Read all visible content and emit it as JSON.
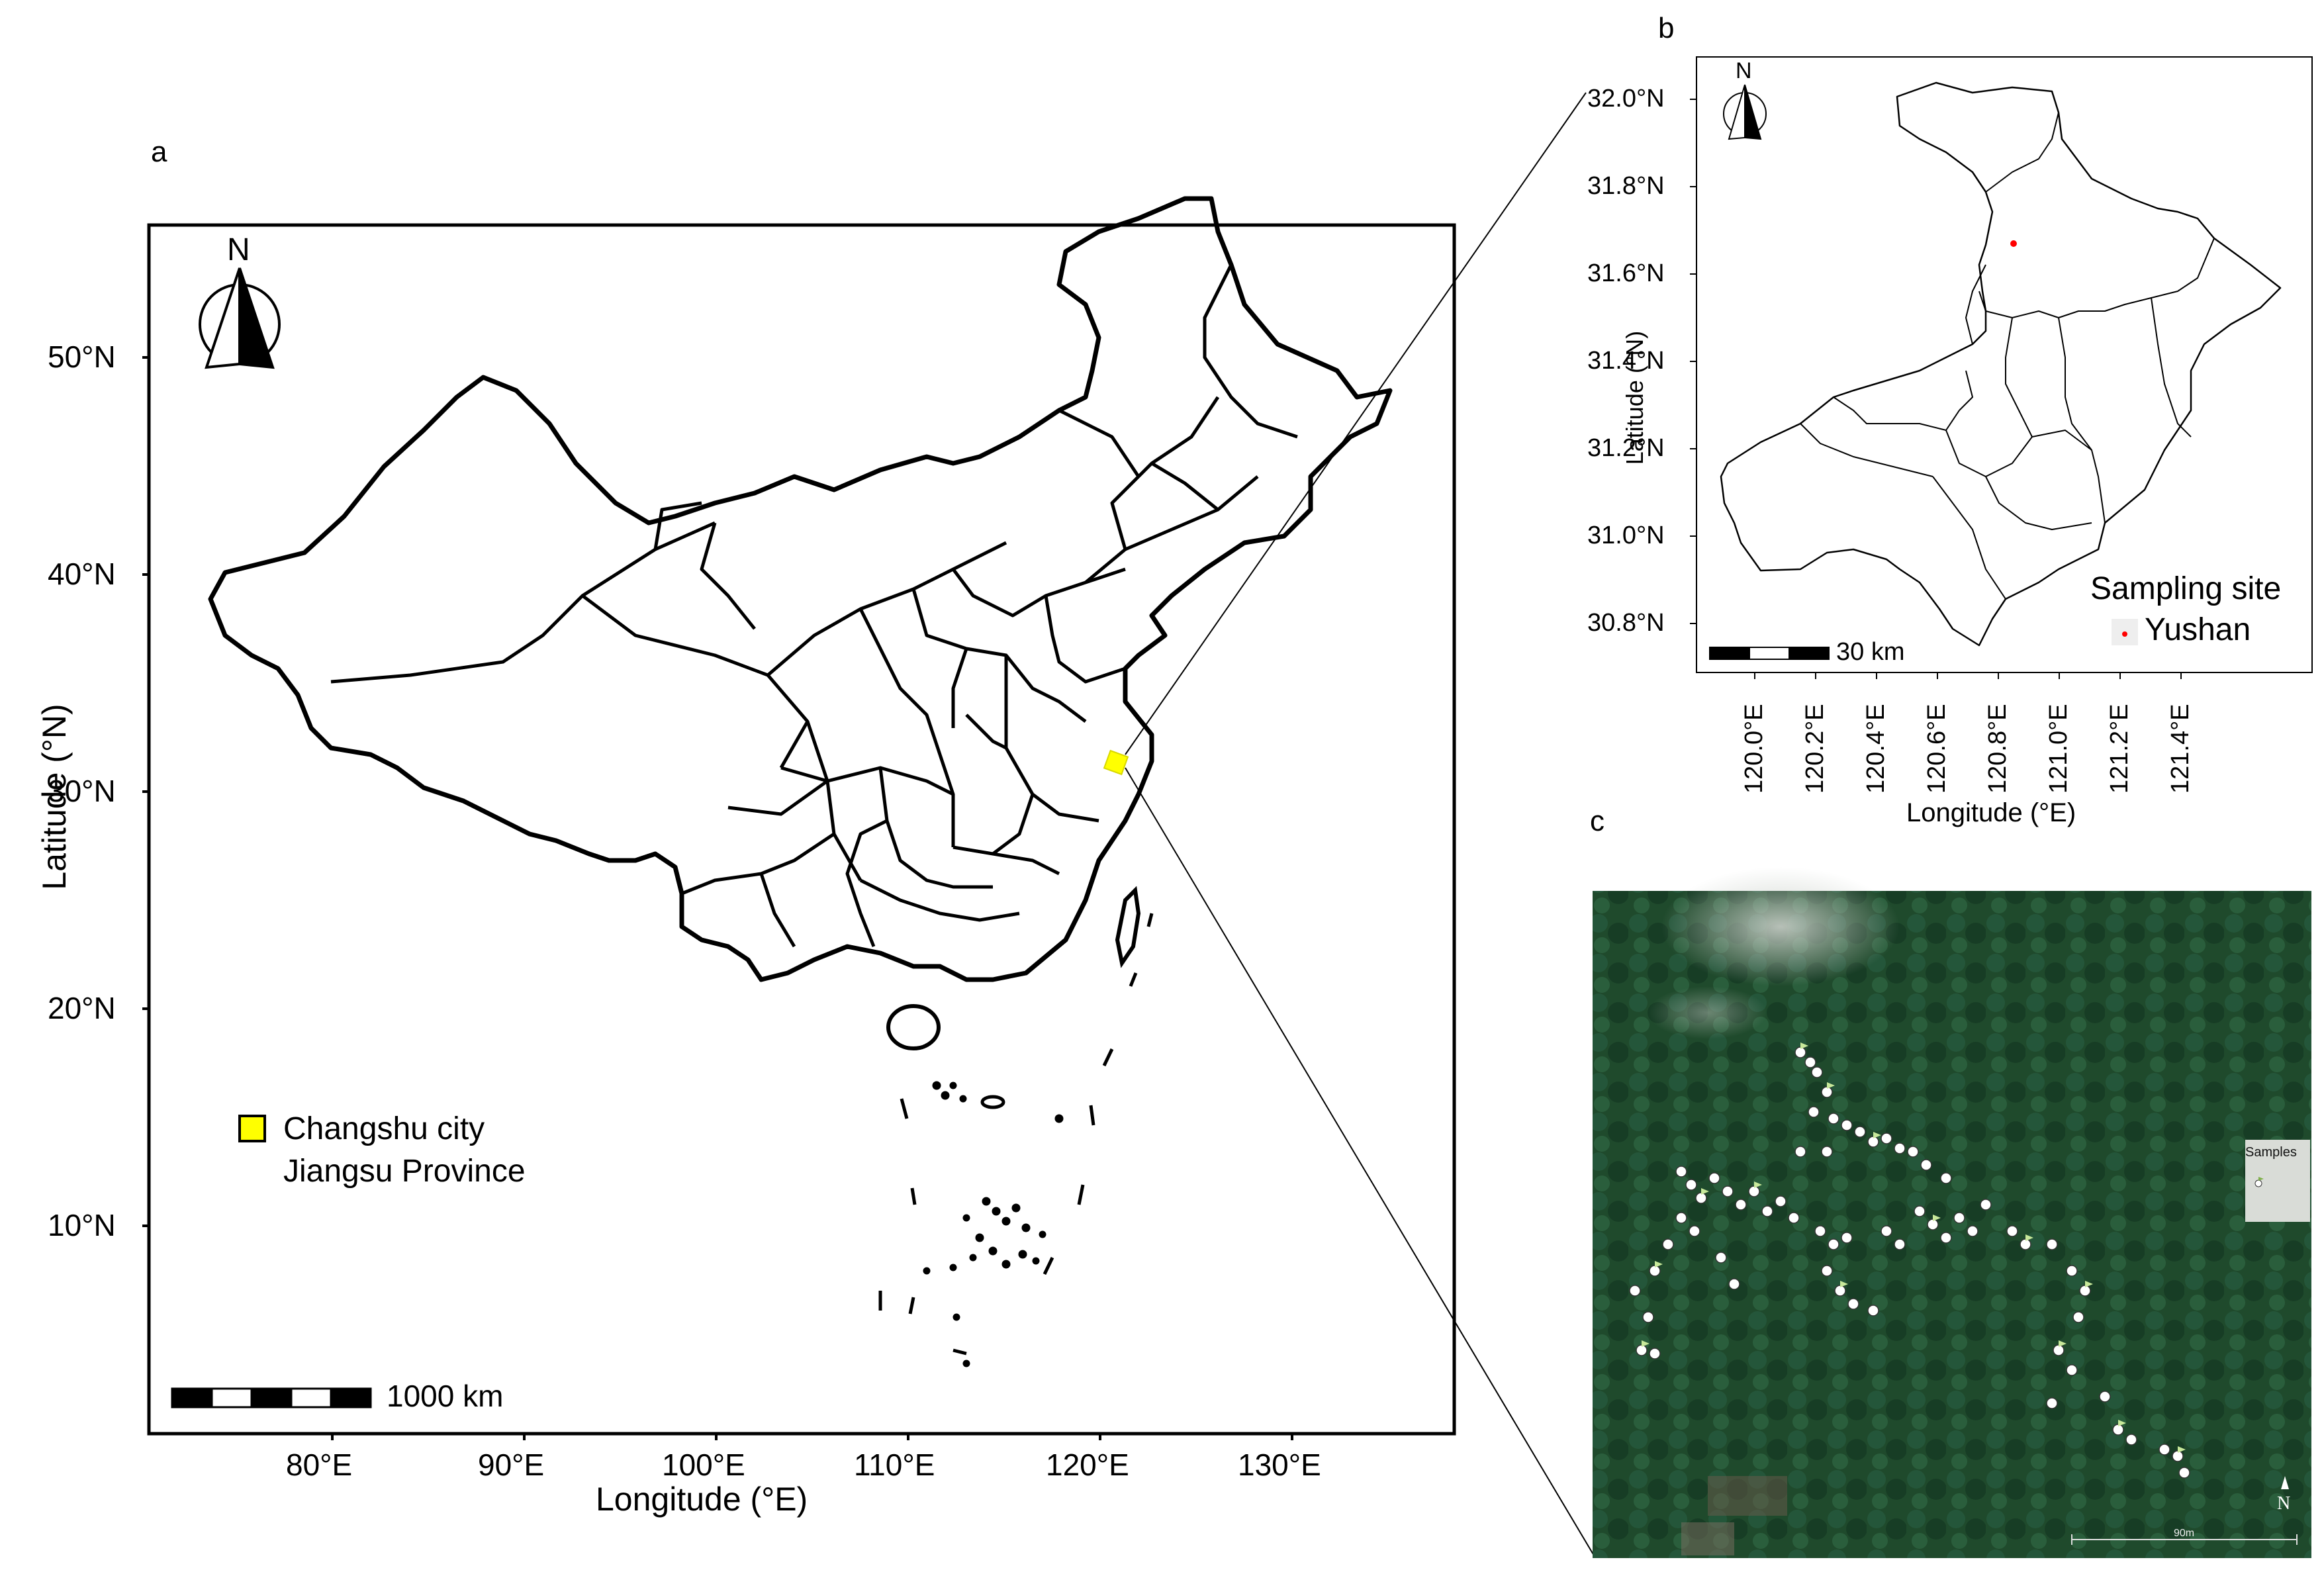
{
  "panel_a": {
    "letter": "a",
    "north": "N",
    "lat_ticks": [
      "50°N",
      "40°N",
      "30°N",
      "20°N",
      "10°N"
    ],
    "lon_ticks": [
      "80°E",
      "90°E",
      "100°E",
      "110°E",
      "120°E",
      "130°E"
    ],
    "xlabel": "Longitude (°E)",
    "ylabel": "Latitude (°N)",
    "legend_line1": "Changshu city",
    "legend_line2": "Jiangsu Province",
    "legend_color": "#ffff00",
    "scale": "1000 km"
  },
  "panel_b": {
    "letter": "b",
    "north": "N",
    "lat_ticks": [
      "32.0°N",
      "31.8°N",
      "31.6°N",
      "31.4°N",
      "31.2°N",
      "31.0°N",
      "30.8°N"
    ],
    "lon_ticks": [
      "120.0°E",
      "120.2°E",
      "120.4°E",
      "120.6°E",
      "120.8°E",
      "121.0°E",
      "121.2°E",
      "121.4°E"
    ],
    "xlabel": "Longitude (°E)",
    "ylabel": "Latitude (°N)",
    "legend_title": "Sampling site",
    "legend_item": "Yushan",
    "site_color": "#ff0000",
    "scale": "30 km"
  },
  "panel_c": {
    "letter": "c",
    "samples_label": "Samples",
    "scale": "90m",
    "north": "N",
    "forest_color": "#1f4a2c"
  }
}
